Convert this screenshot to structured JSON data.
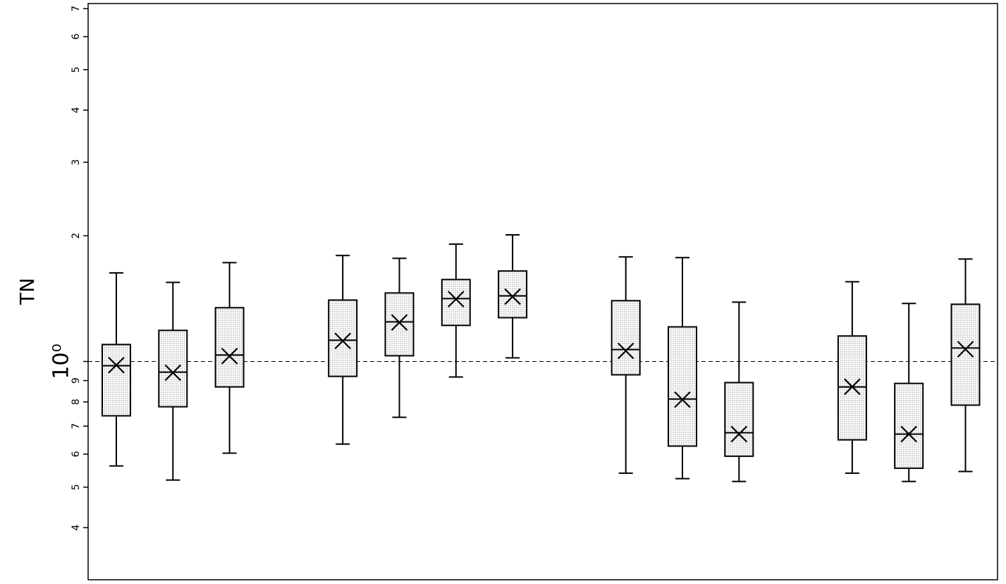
{
  "chart_data": {
    "type": "box",
    "ylabel": "TN",
    "log_scale": true,
    "ylim": [
      0.3,
      7.2
    ],
    "yticks": [
      {
        "value": 0.4,
        "label": "4"
      },
      {
        "value": 0.5,
        "label": "5"
      },
      {
        "value": 0.6,
        "label": "6"
      },
      {
        "value": 0.7,
        "label": "7"
      },
      {
        "value": 0.8,
        "label": "8"
      },
      {
        "value": 0.9,
        "label": "9"
      },
      {
        "value": 1,
        "label": "10⁰"
      },
      2,
      3,
      4,
      5,
      6,
      7
    ],
    "reference_line": 1,
    "color": "#d4d4d4",
    "groups": [
      [
        {
          "min": 0.562,
          "q1": 0.741,
          "median": 0.977,
          "q3": 1.098,
          "max": 1.63,
          "mean": 0.98
        },
        {
          "min": 0.52,
          "q1": 0.779,
          "median": 0.943,
          "q3": 1.187,
          "max": 1.547,
          "mean": 0.94
        },
        {
          "min": 0.603,
          "q1": 0.869,
          "median": 1.036,
          "q3": 1.345,
          "max": 1.725,
          "mean": 1.03
        }
      ],
      [
        {
          "min": 0.634,
          "q1": 0.921,
          "median": 1.124,
          "q3": 1.403,
          "max": 1.794,
          "mean": 1.12
        },
        {
          "min": 0.735,
          "q1": 1.032,
          "median": 1.244,
          "q3": 1.459,
          "max": 1.766,
          "mean": 1.24
        },
        {
          "min": 0.918,
          "q1": 1.22,
          "median": 1.414,
          "q3": 1.571,
          "max": 1.91,
          "mean": 1.41
        },
        {
          "min": 1.02,
          "q1": 1.273,
          "median": 1.436,
          "q3": 1.647,
          "max": 2.01,
          "mean": 1.43
        }
      ],
      [
        {
          "min": 0.54,
          "q1": 0.929,
          "median": 1.068,
          "q3": 1.398,
          "max": 1.78,
          "mean": 1.06
        },
        {
          "min": 0.524,
          "q1": 0.627,
          "median": 0.813,
          "q3": 1.21,
          "max": 1.773,
          "mean": 0.81
        },
        {
          "min": 0.516,
          "q1": 0.593,
          "median": 0.675,
          "q3": 0.89,
          "max": 1.387,
          "mean": 0.67
        }
      ],
      [
        {
          "min": 0.54,
          "q1": 0.649,
          "median": 0.869,
          "q3": 1.151,
          "max": 1.552,
          "mean": 0.87
        },
        {
          "min": 0.516,
          "q1": 0.555,
          "median": 0.67,
          "q3": 0.886,
          "max": 1.377,
          "mean": 0.67
        },
        {
          "min": 0.545,
          "q1": 0.786,
          "median": 1.077,
          "q3": 1.371,
          "max": 1.759,
          "mean": 1.07
        }
      ]
    ]
  }
}
